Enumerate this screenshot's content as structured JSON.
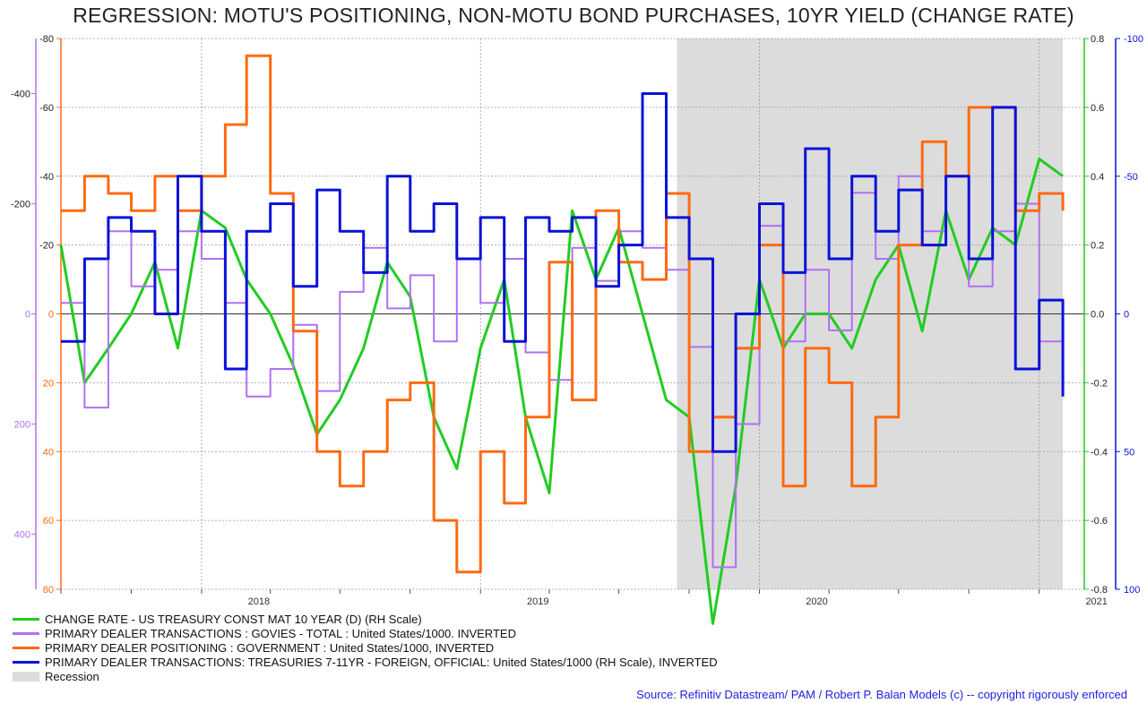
{
  "title": "REGRESSION: MOTU'S POSITIONING, NON-MOTU BOND PURCHASES, 10YR YIELD (CHANGE RATE)",
  "source": "Source: Refinitiv Datastream/ PAM / Robert P. Balan Models (c) -- copyright rigorously enforced",
  "colors": {
    "green": "#22cc22",
    "purple": "#b070f0",
    "orange": "#ff6a10",
    "blue": "#0a12d8",
    "recession": "#dcdcdc"
  },
  "chart_data": {
    "type": "line",
    "title": "REGRESSION: MOTU'S POSITIONING, NON-MOTU BOND PURCHASES, 10YR YIELD (CHANGE RATE)",
    "grid": true,
    "x_tick_labels": [
      "2018",
      "2019",
      "2020",
      "2021"
    ],
    "x_tick_dates": [
      "2018-01-01",
      "2019-01-01",
      "2020-01-01",
      "2021-01-01"
    ],
    "xlim": [
      "2017-07-01",
      "2021-03-01"
    ],
    "axes": {
      "purple_left": {
        "ticks": [
          "-400",
          "-200",
          "0",
          "200",
          "400"
        ],
        "values": [
          -400,
          -200,
          0,
          200,
          400
        ],
        "ylim": [
          -500,
          500
        ],
        "inverted": true
      },
      "orange_left": {
        "ticks": [
          "-80",
          "-60",
          "-40",
          "-20",
          "0",
          "20",
          "40",
          "60",
          "80"
        ],
        "values": [
          -80,
          -60,
          -40,
          -20,
          0,
          20,
          40,
          60,
          80
        ],
        "ylim": [
          -80,
          80
        ],
        "inverted": true
      },
      "green_right": {
        "ticks": [
          "0.8",
          "0.6",
          "0.4",
          "0.2",
          "0.0",
          "-0.2",
          "-0.4",
          "-0.6",
          "-0.8"
        ],
        "values": [
          0.8,
          0.6,
          0.4,
          0.2,
          0.0,
          -0.2,
          -0.4,
          -0.6,
          -0.8
        ],
        "ylim": [
          -0.8,
          0.8
        ],
        "inverted": false
      },
      "blue_right": {
        "ticks": [
          "-100",
          "-50",
          "0",
          "50",
          "100"
        ],
        "values": [
          -100,
          -50,
          0,
          50,
          100
        ],
        "ylim": [
          -100,
          100
        ],
        "inverted": true
      }
    },
    "recession_shading": {
      "start": "2019-09-15",
      "end": "2021-02-01"
    },
    "series": [
      {
        "name": "CHANGE RATE - US TREASURY CONST MAT 10 YEAR (D) (RH Scale)",
        "axis": "green_right",
        "color": "#22cc22",
        "x": [
          "2017-07-01",
          "2017-08-01",
          "2017-09-01",
          "2017-10-01",
          "2017-11-01",
          "2017-12-01",
          "2018-01-01",
          "2018-02-01",
          "2018-03-01",
          "2018-04-01",
          "2018-05-01",
          "2018-06-01",
          "2018-07-01",
          "2018-08-01",
          "2018-09-01",
          "2018-10-01",
          "2018-11-01",
          "2018-12-01",
          "2019-01-01",
          "2019-02-01",
          "2019-03-01",
          "2019-04-01",
          "2019-05-01",
          "2019-06-01",
          "2019-07-01",
          "2019-08-01",
          "2019-09-01",
          "2019-10-01",
          "2019-11-01",
          "2019-12-01",
          "2020-01-01",
          "2020-02-01",
          "2020-03-01",
          "2020-04-01",
          "2020-05-01",
          "2020-06-01",
          "2020-07-01",
          "2020-08-01",
          "2020-09-01",
          "2020-10-01",
          "2020-11-01",
          "2020-12-01",
          "2021-01-01",
          "2021-02-01"
        ],
        "values": [
          0.2,
          -0.2,
          -0.1,
          0.0,
          0.15,
          -0.1,
          0.3,
          0.25,
          0.1,
          0.0,
          -0.15,
          -0.35,
          -0.25,
          -0.1,
          0.15,
          0.05,
          -0.3,
          -0.45,
          -0.1,
          0.1,
          -0.3,
          -0.52,
          0.3,
          0.1,
          0.25,
          0.0,
          -0.25,
          -0.3,
          -0.9,
          -0.5,
          0.1,
          -0.1,
          0.0,
          0.0,
          -0.1,
          0.1,
          0.2,
          -0.05,
          0.3,
          0.1,
          0.25,
          0.2,
          0.45,
          0.4
        ]
      },
      {
        "name": "PRIMARY DEALER TRANSACTIONS : GOVIES - TOTAL : United States/1000. INVERTED",
        "axis": "purple_left",
        "color": "#b070f0",
        "x": [
          "2017-07-01",
          "2017-08-01",
          "2017-09-01",
          "2017-10-01",
          "2017-11-01",
          "2017-12-01",
          "2018-01-01",
          "2018-02-01",
          "2018-03-01",
          "2018-04-01",
          "2018-05-01",
          "2018-06-01",
          "2018-07-01",
          "2018-08-01",
          "2018-09-01",
          "2018-10-01",
          "2018-11-01",
          "2018-12-01",
          "2019-01-01",
          "2019-02-01",
          "2019-03-01",
          "2019-04-01",
          "2019-05-01",
          "2019-06-01",
          "2019-07-01",
          "2019-08-01",
          "2019-09-01",
          "2019-10-01",
          "2019-11-01",
          "2019-12-01",
          "2020-01-01",
          "2020-02-01",
          "2020-03-01",
          "2020-04-01",
          "2020-05-01",
          "2020-06-01",
          "2020-07-01",
          "2020-08-01",
          "2020-09-01",
          "2020-10-01",
          "2020-11-01",
          "2020-12-01",
          "2021-01-01",
          "2021-02-01"
        ],
        "values": [
          -20,
          170,
          -150,
          -50,
          -80,
          -150,
          -100,
          -20,
          150,
          100,
          20,
          140,
          -40,
          -120,
          -10,
          -70,
          50,
          -100,
          -20,
          -100,
          70,
          120,
          -120,
          -60,
          -150,
          -120,
          -80,
          60,
          460,
          200,
          -160,
          50,
          -80,
          30,
          -220,
          -100,
          -250,
          -150,
          -250,
          -50,
          -150,
          -200,
          50,
          100
        ]
      },
      {
        "name": "PRIMARY DEALER POSITIONING : GOVERNMENT : United States/1000, INVERTED",
        "axis": "orange_left",
        "color": "#ff6a10",
        "x": [
          "2017-07-01",
          "2017-08-01",
          "2017-09-01",
          "2017-10-01",
          "2017-11-01",
          "2017-12-01",
          "2018-01-01",
          "2018-02-01",
          "2018-03-01",
          "2018-04-01",
          "2018-05-01",
          "2018-06-01",
          "2018-07-01",
          "2018-08-01",
          "2018-09-01",
          "2018-10-01",
          "2018-11-01",
          "2018-12-01",
          "2019-01-01",
          "2019-02-01",
          "2019-03-01",
          "2019-04-01",
          "2019-05-01",
          "2019-06-01",
          "2019-07-01",
          "2019-08-01",
          "2019-09-01",
          "2019-10-01",
          "2019-11-01",
          "2019-12-01",
          "2020-01-01",
          "2020-02-01",
          "2020-03-01",
          "2020-04-01",
          "2020-05-01",
          "2020-06-01",
          "2020-07-01",
          "2020-08-01",
          "2020-09-01",
          "2020-10-01",
          "2020-11-01",
          "2020-12-01",
          "2021-01-01",
          "2021-02-01"
        ],
        "values": [
          -30,
          -40,
          -35,
          -30,
          -40,
          -30,
          -40,
          -55,
          -75,
          -35,
          5,
          40,
          50,
          40,
          25,
          20,
          60,
          75,
          40,
          55,
          30,
          -15,
          25,
          -30,
          -15,
          -10,
          -35,
          40,
          30,
          10,
          -20,
          50,
          10,
          20,
          50,
          30,
          -20,
          -50,
          -40,
          -60,
          -60,
          -30,
          -35,
          -30
        ]
      },
      {
        "name": "PRIMARY DEALER TRANSACTIONS: TREASURIES 7-11YR - FOREIGN, OFFICIAL: United States/1000 (RH Scale), INVERTED",
        "axis": "blue_right",
        "color": "#0a12d8",
        "x": [
          "2017-07-01",
          "2017-08-01",
          "2017-09-01",
          "2017-10-01",
          "2017-11-01",
          "2017-12-01",
          "2018-01-01",
          "2018-02-01",
          "2018-03-01",
          "2018-04-01",
          "2018-05-01",
          "2018-06-01",
          "2018-07-01",
          "2018-08-01",
          "2018-09-01",
          "2018-10-01",
          "2018-11-01",
          "2018-12-01",
          "2019-01-01",
          "2019-02-01",
          "2019-03-01",
          "2019-04-01",
          "2019-05-01",
          "2019-06-01",
          "2019-07-01",
          "2019-08-01",
          "2019-09-01",
          "2019-10-01",
          "2019-11-01",
          "2019-12-01",
          "2020-01-01",
          "2020-02-01",
          "2020-03-01",
          "2020-04-01",
          "2020-05-01",
          "2020-06-01",
          "2020-07-01",
          "2020-08-01",
          "2020-09-01",
          "2020-10-01",
          "2020-11-01",
          "2020-12-01",
          "2021-01-01",
          "2021-02-01"
        ],
        "values": [
          10,
          -20,
          -35,
          -30,
          0,
          -50,
          -30,
          20,
          -30,
          -40,
          -10,
          -45,
          -30,
          -15,
          -50,
          -30,
          -40,
          -20,
          -35,
          10,
          -35,
          -30,
          -35,
          -10,
          -25,
          -80,
          -35,
          -20,
          50,
          0,
          -40,
          -15,
          -60,
          -20,
          -50,
          -30,
          -45,
          -25,
          -50,
          -20,
          -75,
          20,
          -5,
          30
        ]
      },
      {
        "name": "Recession",
        "axis": "x",
        "color": "#dcdcdc",
        "x": [
          "2019-09-15",
          "2021-02-01"
        ],
        "values": [
          1,
          1
        ]
      }
    ],
    "legend": {
      "position": "bottom-left",
      "entries": [
        "CHANGE RATE - US TREASURY CONST MAT 10 YEAR (D) (RH Scale)",
        "PRIMARY DEALER TRANSACTIONS : GOVIES - TOTAL : United States/1000. INVERTED",
        "PRIMARY DEALER POSITIONING : GOVERNMENT : United States/1000, INVERTED",
        "PRIMARY DEALER TRANSACTIONS: TREASURIES 7-11YR - FOREIGN, OFFICIAL: United States/1000 (RH Scale), INVERTED",
        "Recession"
      ]
    }
  }
}
